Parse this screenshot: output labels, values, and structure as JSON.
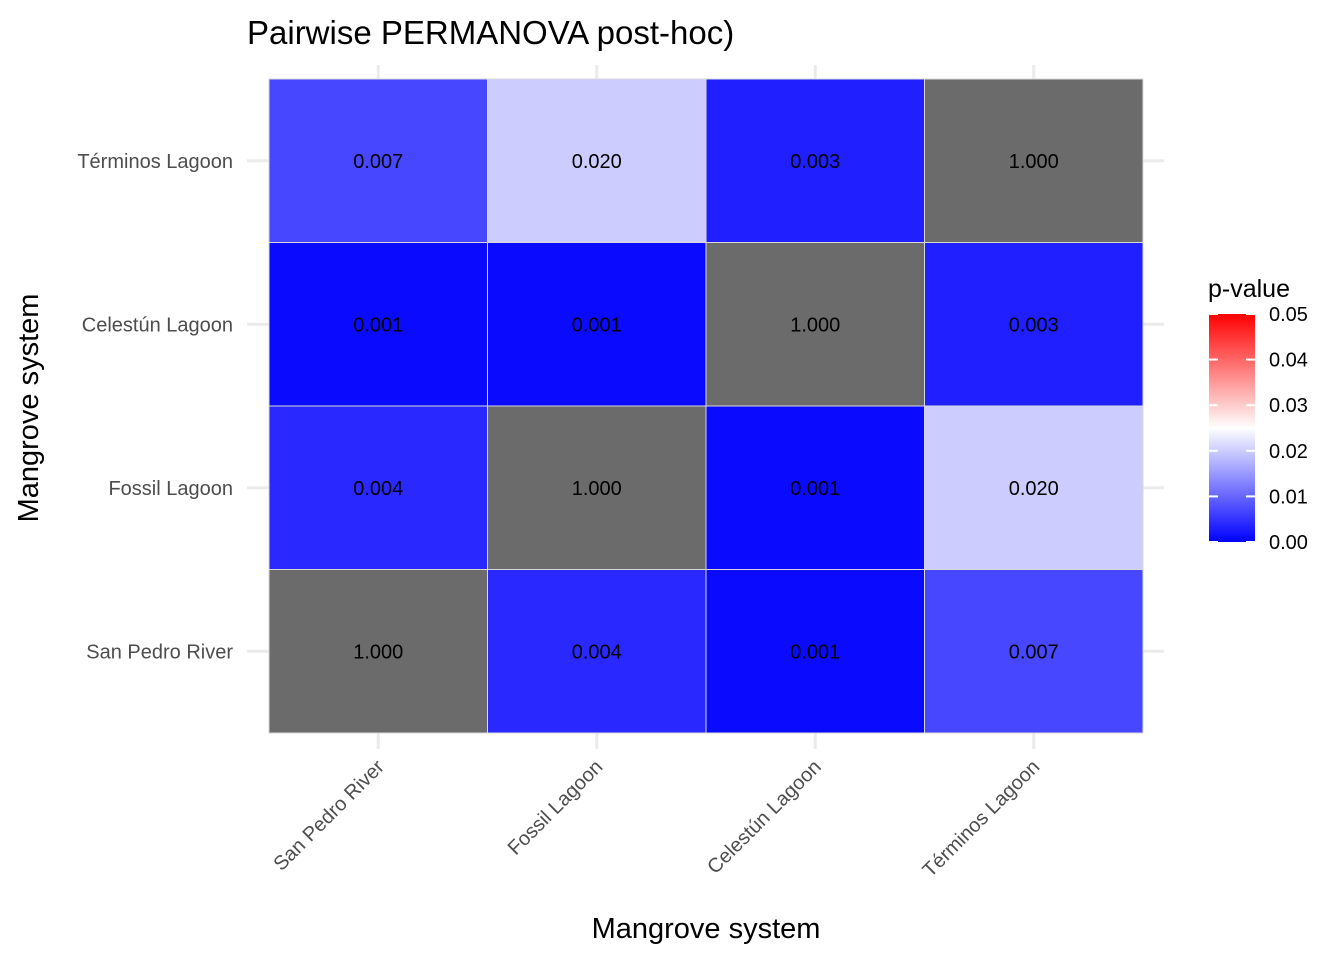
{
  "chart_data": {
    "type": "heatmap",
    "title": "Pairwise PERMANOVA post-hoc)",
    "xlabel": "Mangrove system",
    "ylabel": "Mangrove system",
    "x_categories": [
      "San Pedro River",
      "Fossil Lagoon",
      "Celestún Lagoon",
      "Términos Lagoon"
    ],
    "y_categories": [
      "San Pedro River",
      "Fossil Lagoon",
      "Celestún Lagoon",
      "Términos Lagoon"
    ],
    "values": [
      [
        1.0,
        0.004,
        0.001,
        0.007
      ],
      [
        0.004,
        1.0,
        0.001,
        0.02
      ],
      [
        0.001,
        0.001,
        1.0,
        0.003
      ],
      [
        0.007,
        0.02,
        0.003,
        1.0
      ]
    ],
    "labels": [
      [
        "1.000",
        "0.004",
        "0.001",
        "0.007"
      ],
      [
        "0.004",
        "1.000",
        "0.001",
        "0.020"
      ],
      [
        "0.001",
        "0.001",
        "1.000",
        "0.003"
      ],
      [
        "0.007",
        "0.020",
        "0.003",
        "1.000"
      ]
    ],
    "legend": {
      "title": "p-value",
      "limits": [
        0,
        0.05
      ],
      "ticks": [
        "0.00",
        "0.01",
        "0.02",
        "0.03",
        "0.04",
        "0.05"
      ],
      "low_color": "#0000ff",
      "mid_color": "#ffffff",
      "high_color": "#ff0000",
      "midpoint": 0.025,
      "na_color": "#6b6b6b",
      "placement": "right"
    },
    "grid": true
  }
}
